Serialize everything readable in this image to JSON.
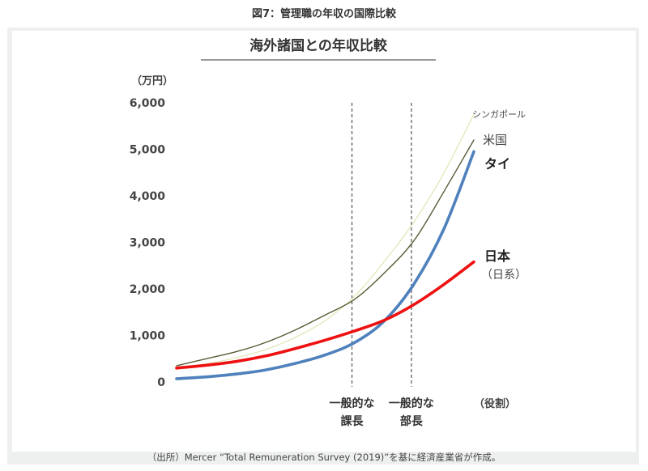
{
  "figure_caption": "図7：管理職の年収の国際比較",
  "source_note": "（出所）Mercer “Total Remuneration Survey (2019)”を基に経済産業省が作成。",
  "colors": {
    "singapore": "#dfe6b4",
    "usa": "#5a5a36",
    "thailand": "#4f81bd",
    "japan": "#ee1111",
    "axis_text": "#444444",
    "grid_line": "#555555"
  },
  "chart_data": {
    "type": "line",
    "title": "海外諸国との年収比較",
    "ylabel": "（万円）",
    "xlabel": "（役割）",
    "ylim": [
      0,
      6000
    ],
    "yticks": [
      0,
      1000,
      2000,
      3000,
      4000,
      5000,
      6000
    ],
    "ytick_labels": [
      "0",
      "1,000",
      "2,000",
      "3,000",
      "4,000",
      "5,000",
      "6,000"
    ],
    "xlim": [
      0,
      1
    ],
    "markers": [
      {
        "x": 0.59,
        "label_line1": "一般的な",
        "label_line2": "課長"
      },
      {
        "x": 0.79,
        "label_line1": "一般的な",
        "label_line2": "部長"
      }
    ],
    "x": [
      0,
      0.1,
      0.2,
      0.3,
      0.4,
      0.5,
      0.6,
      0.7,
      0.8,
      0.9,
      1.0
    ],
    "series": [
      {
        "name": "シンガポール",
        "key": "singapore",
        "values": [
          300,
          390,
          520,
          700,
          960,
          1320,
          1850,
          2600,
          3450,
          4500,
          5750
        ]
      },
      {
        "name": "米国",
        "key": "usa",
        "values": [
          350,
          500,
          650,
          850,
          1120,
          1440,
          1780,
          2350,
          3050,
          4100,
          5200
        ]
      },
      {
        "name": "タイ",
        "key": "thailand",
        "values": [
          70,
          110,
          170,
          260,
          400,
          580,
          850,
          1320,
          2120,
          3300,
          4950
        ]
      },
      {
        "name": "日本",
        "name_sub": "（日系）",
        "key": "japan",
        "values": [
          300,
          360,
          440,
          560,
          720,
          900,
          1100,
          1330,
          1670,
          2100,
          2580
        ]
      }
    ]
  }
}
